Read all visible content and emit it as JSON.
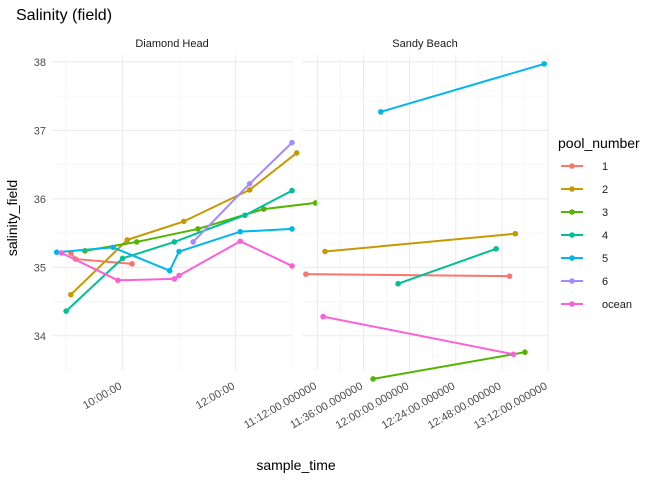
{
  "chart_data": {
    "type": "line",
    "title": "Salinity (field)",
    "xlabel": "sample_time",
    "ylabel": "salinity_field",
    "legend_title": "pool_number",
    "legend_position": "right",
    "grid": true,
    "ylim": [
      33.5,
      38.1
    ],
    "y_ticks": [
      "34",
      "35",
      "36",
      "37",
      "38"
    ],
    "colors": {
      "1": "#F8766D",
      "2": "#C49A00",
      "3": "#53B400",
      "4": "#00C094",
      "5": "#00B6EB",
      "6": "#A58AFF",
      "ocean": "#FB61D7"
    },
    "legend": [
      "1",
      "2",
      "3",
      "4",
      "5",
      "6",
      "ocean"
    ],
    "panels": [
      {
        "strip": "Diamond Head",
        "xlim": [
          "08:45",
          "13:00"
        ],
        "x_ticks": [
          {
            "t": "10:00",
            "label": "10:00:00"
          },
          {
            "t": "12:00",
            "label": "12:00:00"
          }
        ],
        "series": [
          {
            "name": "1",
            "points": [
              [
                "09:05",
                35.21
              ],
              [
                "09:10",
                35.12
              ],
              [
                "10:10",
                35.05
              ]
            ]
          },
          {
            "name": "2",
            "points": [
              [
                "09:05",
                34.6
              ],
              [
                "10:05",
                35.4
              ],
              [
                "11:05",
                35.67
              ],
              [
                "12:15",
                36.13
              ],
              [
                "13:05",
                36.67
              ]
            ]
          },
          {
            "name": "3",
            "points": [
              [
                "09:20",
                35.24
              ],
              [
                "10:15",
                35.37
              ],
              [
                "11:20",
                35.56
              ],
              [
                "12:30",
                35.85
              ],
              [
                "13:25",
                35.94
              ]
            ]
          },
          {
            "name": "4",
            "points": [
              [
                "09:00",
                34.36
              ],
              [
                "10:00",
                35.13
              ],
              [
                "10:55",
                35.37
              ],
              [
                "12:10",
                35.76
              ],
              [
                "13:00",
                36.12
              ]
            ]
          },
          {
            "name": "5",
            "points": [
              [
                "08:50",
                35.22
              ],
              [
                "09:50",
                35.29
              ],
              [
                "10:50",
                34.95
              ],
              [
                "11:00",
                35.23
              ],
              [
                "12:05",
                35.52
              ],
              [
                "13:00",
                35.56
              ]
            ]
          },
          {
            "name": "6",
            "points": [
              [
                "11:15",
                35.37
              ],
              [
                "12:15",
                36.22
              ],
              [
                "13:00",
                36.82
              ]
            ]
          },
          {
            "name": "ocean",
            "points": [
              [
                "08:55",
                35.21
              ],
              [
                "09:55",
                34.81
              ],
              [
                "10:55",
                34.83
              ],
              [
                "11:00",
                34.88
              ],
              [
                "12:05",
                35.38
              ],
              [
                "13:00",
                35.02
              ]
            ]
          }
        ]
      },
      {
        "strip": "Sandy Beach",
        "xlim": [
          "11:04",
          "13:12"
        ],
        "x_ticks": [
          {
            "t": "11:12",
            "label": "11:12:00.000000"
          },
          {
            "t": "11:36",
            "label": "11:36:00.000000"
          },
          {
            "t": "12:00",
            "label": "12:00:00.000000"
          },
          {
            "t": "12:24",
            "label": "12:24:00.000000"
          },
          {
            "t": "12:48",
            "label": "12:48:00.000000"
          },
          {
            "t": "13:12",
            "label": "13:12:00.000000"
          }
        ],
        "series": [
          {
            "name": "1",
            "points": [
              [
                "11:06",
                34.9
              ],
              [
                "12:52",
                34.87
              ]
            ]
          },
          {
            "name": "2",
            "points": [
              [
                "11:16",
                35.23
              ],
              [
                "12:55",
                35.49
              ]
            ]
          },
          {
            "name": "3",
            "points": [
              [
                "11:41",
                33.37
              ],
              [
                "13:00",
                33.76
              ]
            ]
          },
          {
            "name": "4",
            "points": [
              [
                "11:54",
                34.76
              ],
              [
                "12:45",
                35.27
              ]
            ]
          },
          {
            "name": "5",
            "points": [
              [
                "11:45",
                37.27
              ],
              [
                "13:10",
                37.97
              ]
            ]
          },
          {
            "name": "ocean",
            "points": [
              [
                "11:15",
                34.28
              ],
              [
                "12:54",
                33.73
              ]
            ]
          }
        ]
      }
    ]
  }
}
